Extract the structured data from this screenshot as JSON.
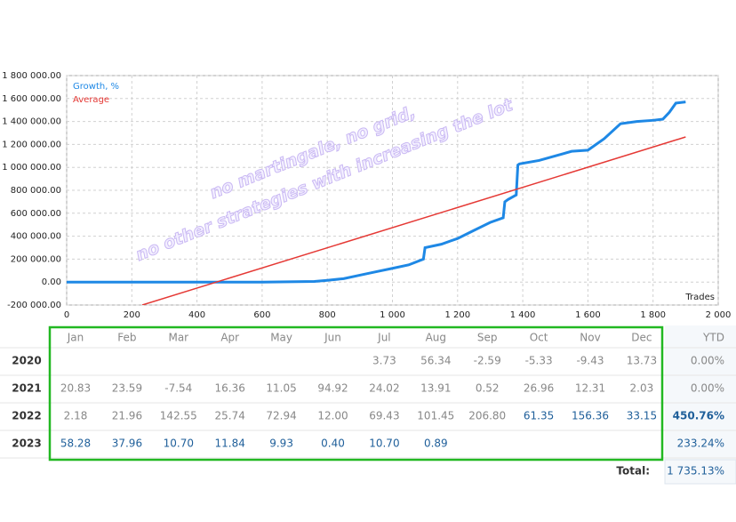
{
  "chart_data": {
    "type": "line",
    "annotations": [
      "no martingale, no grid,",
      "no other strategies with increasing the lot"
    ],
    "xlabel": "Trades",
    "series": [
      {
        "name": "Growth, %",
        "color": "#1e88e5",
        "x": [
          0,
          200,
          400,
          600,
          760,
          800,
          850,
          900,
          950,
          1000,
          1050,
          1095,
          1100,
          1150,
          1200,
          1250,
          1300,
          1340,
          1345,
          1355,
          1380,
          1385,
          1390,
          1450,
          1500,
          1550,
          1600,
          1650,
          1700,
          1750,
          1800,
          1830,
          1850,
          1870,
          1900
        ],
        "values": [
          0,
          0,
          0,
          0,
          5000,
          15000,
          30000,
          60000,
          90000,
          120000,
          150000,
          200000,
          300000,
          330000,
          380000,
          450000,
          520000,
          560000,
          700000,
          720000,
          760000,
          1020000,
          1030000,
          1060000,
          1100000,
          1140000,
          1150000,
          1250000,
          1380000,
          1400000,
          1410000,
          1420000,
          1480000,
          1560000,
          1570000
        ]
      },
      {
        "name": "Average",
        "color": "#e53935",
        "x": [
          232,
          1900
        ],
        "values": [
          -200000,
          1265000
        ]
      }
    ],
    "xlim": [
      0,
      2000
    ],
    "xticks": [
      0,
      200,
      400,
      600,
      800,
      {
        "value": 1000,
        "label": "1 000"
      },
      {
        "value": 1200,
        "label": "1 200"
      },
      {
        "value": 1400,
        "label": "1 400"
      },
      {
        "value": 1600,
        "label": "1 600"
      },
      {
        "value": 1800,
        "label": "1 800"
      },
      {
        "value": 2000,
        "label": "2 000"
      }
    ],
    "ylim": [
      -200000,
      1800000
    ],
    "yticks": [
      {
        "value": -200000,
        "label": "-200 000.00"
      },
      {
        "value": 0,
        "label": "0.00"
      },
      {
        "value": 200000,
        "label": "200 000.00"
      },
      {
        "value": 400000,
        "label": "400 000.00"
      },
      {
        "value": 600000,
        "label": "600 000.00"
      },
      {
        "value": 800000,
        "label": "800 000.00"
      },
      {
        "value": 1000000,
        "label": "1 000 000.00"
      },
      {
        "value": 1200000,
        "label": "1 200 000.00"
      },
      {
        "value": 1400000,
        "label": "1 400 000.00"
      },
      {
        "value": 1600000,
        "label": "1 600 000.00"
      },
      {
        "value": 1800000,
        "label": "1 800 000.00"
      }
    ],
    "grid": true
  },
  "table": {
    "months": [
      "Jan",
      "Feb",
      "Mar",
      "Apr",
      "May",
      "Jun",
      "Jul",
      "Aug",
      "Sep",
      "Oct",
      "Nov",
      "Dec"
    ],
    "ytd_header": "YTD",
    "rows": [
      {
        "year": "2020",
        "months": [
          null,
          null,
          null,
          null,
          null,
          null,
          "3.73",
          "56.34",
          "-2.59",
          "-5.33",
          "-9.43",
          "13.73"
        ],
        "ytd": "0.00%"
      },
      {
        "year": "2021",
        "months": [
          "20.83",
          "23.59",
          "-7.54",
          "16.36",
          "11.05",
          "94.92",
          "24.02",
          "13.91",
          "0.52",
          "26.96",
          "12.31",
          "2.03"
        ],
        "ytd": "0.00%"
      },
      {
        "year": "2022",
        "months": [
          "2.18",
          "21.96",
          "142.55",
          "25.74",
          "72.94",
          "12.00",
          "69.43",
          "101.45",
          "206.80",
          "61.35",
          "156.36",
          "33.15"
        ],
        "ytd": "450.76%"
      },
      {
        "year": "2023",
        "months": [
          "58.28",
          "37.96",
          "10.70",
          "11.84",
          "9.93",
          "0.40",
          "10.70",
          "0.89",
          null,
          null,
          null,
          null
        ],
        "ytd": "233.24%"
      }
    ],
    "total_label": "Total:",
    "total": "1 735.13%"
  }
}
